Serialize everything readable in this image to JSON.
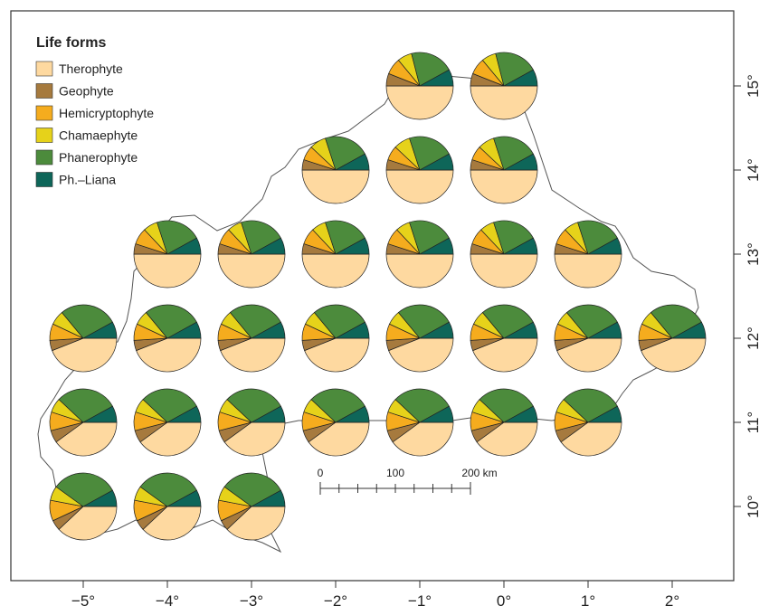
{
  "legend": {
    "title": "Life forms",
    "items": [
      {
        "label": "Therophyte",
        "color": "#FED9A0"
      },
      {
        "label": "Geophyte",
        "color": "#A67A3E"
      },
      {
        "label": "Hemicryptophyte",
        "color": "#F5AC1E"
      },
      {
        "label": "Chamaephyte",
        "color": "#E6D21A"
      },
      {
        "label": "Phanerophyte",
        "color": "#4C8B3C"
      },
      {
        "label": "Ph.–Liana",
        "color": "#0E6659"
      }
    ]
  },
  "x_axis": {
    "ticks": [
      -5,
      -4,
      -3,
      -2,
      -1,
      0,
      1,
      2
    ],
    "labels": [
      "−5°",
      "−4°",
      "−3°",
      "−2°",
      "−1°",
      "0°",
      "1°",
      "2°"
    ],
    "range": [
      -5.85,
      2.7
    ]
  },
  "y_axis": {
    "ticks": [
      10,
      11,
      12,
      13,
      14,
      15
    ],
    "labels": [
      "10°",
      "11°",
      "12°",
      "13°",
      "14°",
      "15°"
    ],
    "range": [
      9.2,
      15.9
    ]
  },
  "scale_bar": {
    "labels": [
      "0",
      "100",
      "200 km"
    ],
    "values_km": [
      0,
      100,
      200
    ]
  },
  "chart_data": {
    "type": "pie-map",
    "legend_placement": "top-left",
    "categories": [
      "Therophyte",
      "Geophyte",
      "Hemicryptophyte",
      "Chamaephyte",
      "Phanerophyte",
      "Ph.–Liana"
    ],
    "note_order": "proportions in percent of species per grid cell, in category order",
    "cells": [
      {
        "lon": -1,
        "lat": 15,
        "values": [
          50,
          6,
          8,
          7,
          21,
          8
        ]
      },
      {
        "lon": 0,
        "lat": 15,
        "values": [
          50,
          6,
          8,
          7,
          21,
          8
        ]
      },
      {
        "lon": -2,
        "lat": 14,
        "values": [
          50,
          5,
          7,
          8,
          22,
          8
        ]
      },
      {
        "lon": -1,
        "lat": 14,
        "values": [
          50,
          5,
          7,
          8,
          22,
          8
        ]
      },
      {
        "lon": 0,
        "lat": 14,
        "values": [
          50,
          5,
          7,
          8,
          22,
          8
        ]
      },
      {
        "lon": -4,
        "lat": 13,
        "values": [
          50,
          5,
          8,
          7,
          22,
          8
        ]
      },
      {
        "lon": -3,
        "lat": 13,
        "values": [
          50,
          5,
          8,
          7,
          22,
          8
        ]
      },
      {
        "lon": -2,
        "lat": 13,
        "values": [
          50,
          5,
          8,
          7,
          22,
          8
        ]
      },
      {
        "lon": -1,
        "lat": 13,
        "values": [
          50,
          5,
          8,
          7,
          22,
          8
        ]
      },
      {
        "lon": 0,
        "lat": 13,
        "values": [
          50,
          5,
          8,
          7,
          22,
          8
        ]
      },
      {
        "lon": 1,
        "lat": 13,
        "values": [
          50,
          5,
          8,
          7,
          22,
          8
        ]
      },
      {
        "lon": -5,
        "lat": 12,
        "values": [
          44,
          5,
          8,
          7,
          28,
          8
        ]
      },
      {
        "lon": -4,
        "lat": 12,
        "values": [
          44,
          5,
          8,
          7,
          28,
          8
        ]
      },
      {
        "lon": -3,
        "lat": 12,
        "values": [
          44,
          5,
          8,
          7,
          28,
          8
        ]
      },
      {
        "lon": -2,
        "lat": 12,
        "values": [
          44,
          5,
          8,
          7,
          28,
          8
        ]
      },
      {
        "lon": -1,
        "lat": 12,
        "values": [
          44,
          5,
          8,
          7,
          28,
          8
        ]
      },
      {
        "lon": 0,
        "lat": 12,
        "values": [
          44,
          5,
          8,
          7,
          28,
          8
        ]
      },
      {
        "lon": 1,
        "lat": 12,
        "values": [
          44,
          5,
          8,
          7,
          28,
          8
        ]
      },
      {
        "lon": 2,
        "lat": 12,
        "values": [
          44,
          5,
          8,
          7,
          28,
          8
        ]
      },
      {
        "lon": -5,
        "lat": 11,
        "values": [
          40,
          6,
          9,
          7,
          30,
          8
        ]
      },
      {
        "lon": -4,
        "lat": 11,
        "values": [
          40,
          6,
          9,
          7,
          30,
          8
        ]
      },
      {
        "lon": -3,
        "lat": 11,
        "values": [
          40,
          6,
          9,
          7,
          30,
          8
        ]
      },
      {
        "lon": -2,
        "lat": 11,
        "values": [
          40,
          6,
          9,
          7,
          30,
          8
        ]
      },
      {
        "lon": -1,
        "lat": 11,
        "values": [
          40,
          6,
          9,
          7,
          30,
          8
        ]
      },
      {
        "lon": 0,
        "lat": 11,
        "values": [
          40,
          6,
          9,
          7,
          30,
          8
        ]
      },
      {
        "lon": 1,
        "lat": 11,
        "values": [
          40,
          6,
          9,
          7,
          30,
          8
        ]
      },
      {
        "lon": -5,
        "lat": 10,
        "values": [
          38,
          5,
          10,
          7,
          32,
          8
        ]
      },
      {
        "lon": -4,
        "lat": 10,
        "values": [
          38,
          5,
          10,
          7,
          32,
          8
        ]
      },
      {
        "lon": -3,
        "lat": 10,
        "values": [
          38,
          5,
          10,
          7,
          32,
          8
        ]
      }
    ]
  }
}
